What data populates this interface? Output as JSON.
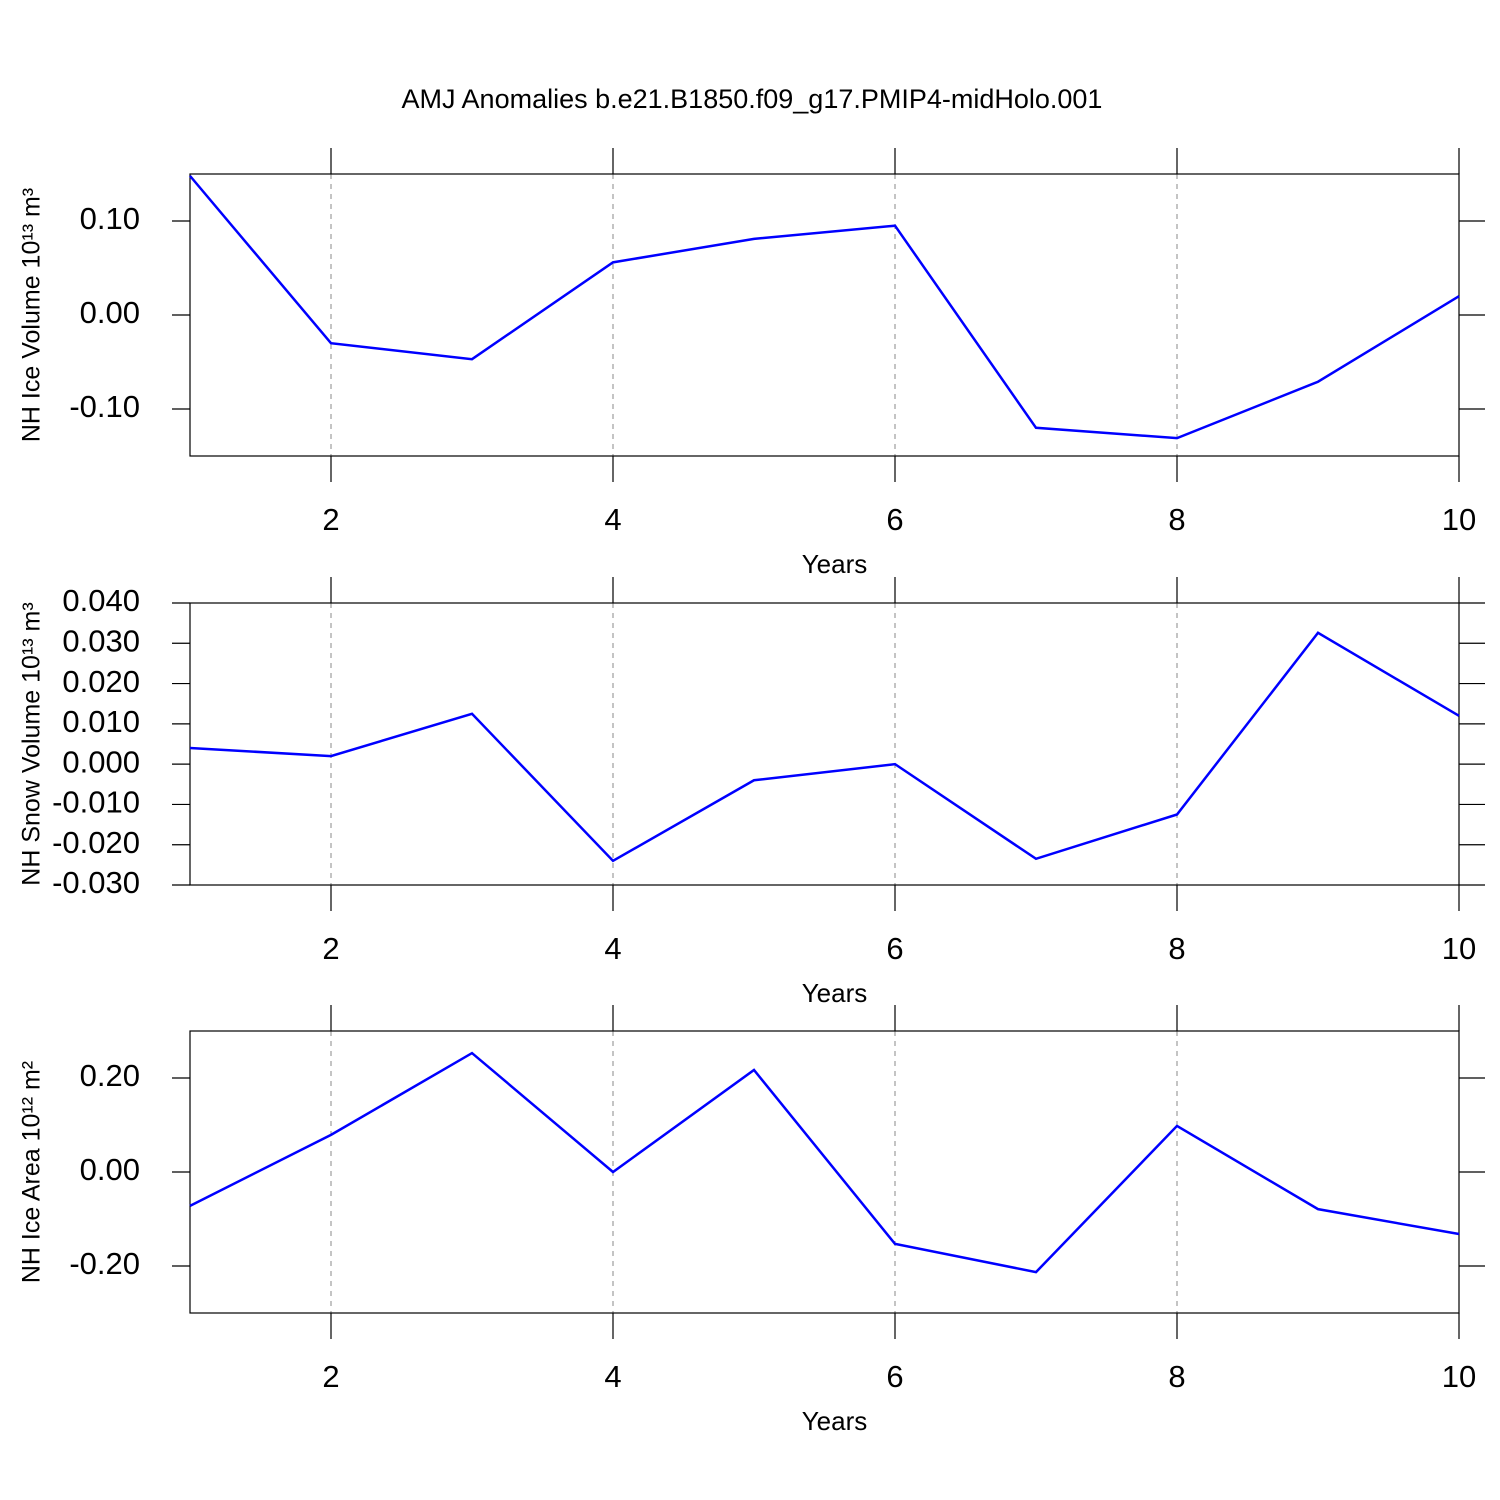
{
  "title": "AMJ Anomalies b.e21.B1850.f09_g17.PMIP4-midHolo.001",
  "chart_data": [
    {
      "type": "line",
      "ylabel": "NH Ice Volume 10¹³ m³",
      "xlabel": "Years",
      "x": [
        1,
        2,
        3,
        4,
        5,
        6,
        7,
        8,
        9,
        10
      ],
      "values": [
        0.148,
        -0.03,
        -0.047,
        0.056,
        0.081,
        0.095,
        -0.12,
        -0.131,
        -0.071,
        0.02
      ],
      "color": "#0000ff",
      "xlim": [
        1,
        10
      ],
      "xticks": [
        2,
        4,
        6,
        8,
        10
      ],
      "ylim": [
        -0.15,
        0.15
      ],
      "yticks": [
        {
          "value": 0.1,
          "label": "0.10"
        },
        {
          "value": 0,
          "label": "0.00"
        },
        {
          "value": -0.1,
          "label": "-0.10"
        }
      ],
      "xgrid": true
    },
    {
      "type": "line",
      "ylabel": "NH Snow Volume 10¹³ m³",
      "xlabel": "Years",
      "x": [
        1,
        2,
        3,
        4,
        5,
        6,
        7,
        8,
        9,
        10
      ],
      "values": [
        0.004,
        0.002,
        0.0125,
        -0.024,
        -0.004,
        0.0,
        -0.0235,
        -0.0125,
        0.0326,
        0.012
      ],
      "color": "#0000ff",
      "xlim": [
        1,
        10
      ],
      "xticks": [
        2,
        4,
        6,
        8,
        10
      ],
      "ylim": [
        -0.03,
        0.04
      ],
      "yticks": [
        {
          "value": 0.04,
          "label": "0.040"
        },
        {
          "value": 0.03,
          "label": "0.030"
        },
        {
          "value": 0.02,
          "label": "0.020"
        },
        {
          "value": 0.01,
          "label": "0.010"
        },
        {
          "value": 0,
          "label": "0.000"
        },
        {
          "value": -0.01,
          "label": "-0.010"
        },
        {
          "value": -0.02,
          "label": "-0.020"
        },
        {
          "value": -0.03,
          "label": "-0.030"
        }
      ],
      "xgrid": true
    },
    {
      "type": "line",
      "ylabel": "NH Ice Area 10¹² m²",
      "xlabel": "Years",
      "x": [
        1,
        2,
        3,
        4,
        5,
        6,
        7,
        8,
        9,
        10
      ],
      "values": [
        -0.072,
        0.079,
        0.253,
        0.0,
        0.217,
        -0.153,
        -0.213,
        0.098,
        -0.079,
        -0.132
      ],
      "color": "#0000ff",
      "xlim": [
        1,
        10
      ],
      "xticks": [
        2,
        4,
        6,
        8,
        10
      ],
      "ylim": [
        -0.3,
        0.3
      ],
      "yticks": [
        {
          "value": 0.2,
          "label": "0.20"
        },
        {
          "value": 0,
          "label": "0.00"
        },
        {
          "value": -0.2,
          "label": "-0.20"
        }
      ],
      "xgrid": true
    }
  ]
}
